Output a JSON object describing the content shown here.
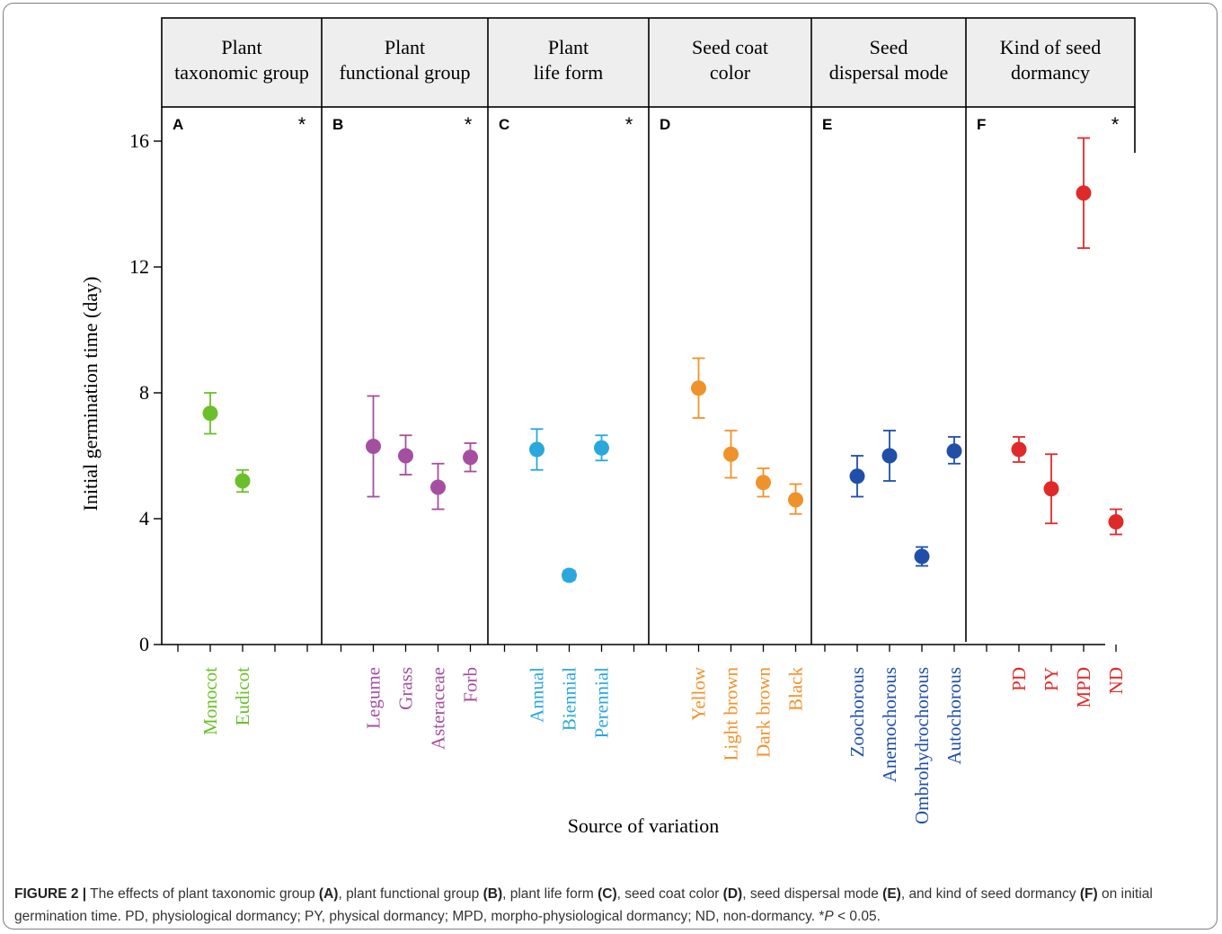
{
  "chart_data": {
    "type": "scatter",
    "ylabel": "Initial germination time (day)",
    "xlabel": "Source of variation",
    "ylim": [
      0,
      17.3
    ],
    "yticks": [
      0,
      4,
      8,
      12,
      16
    ],
    "panels": [
      {
        "letter": "A",
        "header": [
          "Plant",
          "taxonomic group"
        ],
        "significant": "*",
        "color": "#6bbf2a",
        "categories": [
          "Monocot",
          "Eudicot"
        ],
        "means": [
          7.35,
          5.2
        ],
        "lower": [
          6.7,
          4.85
        ],
        "upper": [
          8.0,
          5.55
        ]
      },
      {
        "letter": "B",
        "header": [
          "Plant",
          "functional group"
        ],
        "significant": "*",
        "color": "#a44fa0",
        "categories": [
          "Legume",
          "Grass",
          "Asteraceae",
          "Forb"
        ],
        "means": [
          6.3,
          6.0,
          5.0,
          5.95
        ],
        "lower": [
          4.7,
          5.4,
          4.3,
          5.5
        ],
        "upper": [
          7.9,
          6.65,
          5.75,
          6.4
        ]
      },
      {
        "letter": "C",
        "header": [
          "Plant",
          "life form"
        ],
        "significant": "*",
        "color": "#2aa7dd",
        "categories": [
          "Annual",
          "Biennial",
          "Perennial"
        ],
        "means": [
          6.2,
          2.2,
          6.25
        ],
        "lower": [
          5.55,
          2.05,
          5.85
        ],
        "upper": [
          6.85,
          2.35,
          6.65
        ]
      },
      {
        "letter": "D",
        "header": [
          "Seed coat",
          "color"
        ],
        "significant": "",
        "color": "#f0922b",
        "categories": [
          "Yellow",
          "Light  brown",
          "Dark brown",
          "Black"
        ],
        "means": [
          8.15,
          6.05,
          5.15,
          4.6
        ],
        "lower": [
          7.2,
          5.3,
          4.7,
          4.15
        ],
        "upper": [
          9.1,
          6.8,
          5.6,
          5.1
        ]
      },
      {
        "letter": "E",
        "header": [
          "Seed",
          "dispersal mode"
        ],
        "significant": "",
        "color": "#1f4fa8",
        "categories": [
          "Zoochorous",
          "Anemochorous",
          "Ombrohydrochorous",
          "Autochorous"
        ],
        "means": [
          5.35,
          6.0,
          2.8,
          6.15
        ],
        "lower": [
          4.7,
          5.2,
          2.5,
          5.75
        ],
        "upper": [
          6.0,
          6.8,
          3.1,
          6.6
        ]
      },
      {
        "letter": "F",
        "header": [
          "Kind of seed",
          "dormancy"
        ],
        "significant": "*",
        "color": "#e02a2a",
        "categories": [
          "PD",
          "PY",
          "MPD",
          "ND"
        ],
        "means": [
          6.2,
          4.95,
          14.35,
          3.9
        ],
        "lower": [
          5.8,
          3.85,
          12.6,
          3.5
        ],
        "upper": [
          6.6,
          6.05,
          16.1,
          4.3
        ]
      }
    ]
  },
  "caption": {
    "figure_label": "FIGURE 2 |",
    "segments": [
      {
        "text": " The effects of plant taxonomic group ",
        "bold": false
      },
      {
        "text": "(A)",
        "bold": true
      },
      {
        "text": ", plant functional group ",
        "bold": false
      },
      {
        "text": "(B)",
        "bold": true
      },
      {
        "text": ", plant life form ",
        "bold": false
      },
      {
        "text": "(C)",
        "bold": true
      },
      {
        "text": ", seed coat color ",
        "bold": false
      },
      {
        "text": "(D)",
        "bold": true
      },
      {
        "text": ", seed dispersal mode ",
        "bold": false
      },
      {
        "text": "(E)",
        "bold": true
      },
      {
        "text": ", and kind of seed dormancy ",
        "bold": false
      },
      {
        "text": "(F)",
        "bold": true
      },
      {
        "text": " on initial germination time. PD, physiological dormancy; PY, physical dormancy; MPD, morpho-physiological dormancy; ND, non-dormancy. *",
        "bold": false
      },
      {
        "text": "P",
        "bold": false,
        "italic": true
      },
      {
        "text": " < 0.05.",
        "bold": false
      }
    ]
  }
}
